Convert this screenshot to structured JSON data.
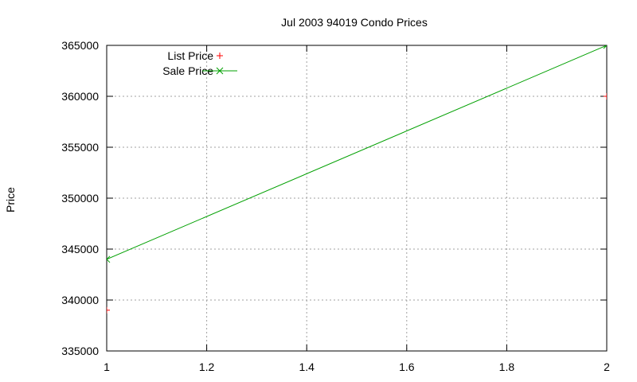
{
  "chart_data": {
    "type": "line",
    "title": "Jul 2003 94019 Condo Prices",
    "xlabel": "",
    "ylabel": "Price",
    "xlim": [
      1,
      2
    ],
    "ylim": [
      335000,
      365000
    ],
    "xticks": [
      1,
      1.2,
      1.4,
      1.6,
      1.8,
      2
    ],
    "xtick_labels": [
      "1",
      "1.2",
      "1.4",
      "1.6",
      "1.8",
      "2"
    ],
    "yticks": [
      335000,
      340000,
      345000,
      350000,
      355000,
      360000,
      365000
    ],
    "ytick_labels": [
      "335000",
      "340000",
      "345000",
      "350000",
      "355000",
      "360000",
      "365000"
    ],
    "grid": true,
    "legend_position": "top-left",
    "series": [
      {
        "name": "List Price",
        "style": "points",
        "marker": "plus",
        "color": "#ff0000",
        "x": [
          1,
          2
        ],
        "y": [
          339000,
          360000
        ]
      },
      {
        "name": "Sale Price",
        "style": "linespoints",
        "marker": "cross",
        "color": "#00a000",
        "x": [
          1,
          2
        ],
        "y": [
          344000,
          365000
        ]
      }
    ]
  }
}
